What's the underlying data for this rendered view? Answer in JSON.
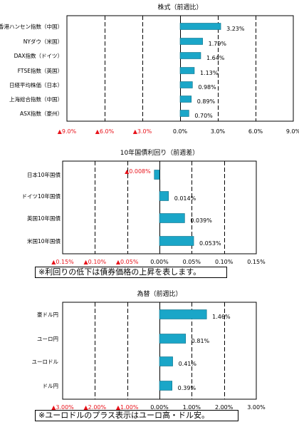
{
  "colors": {
    "bar": "#1aa6c8",
    "bar_stroke": "#0a6f86",
    "negative_text": "#e8131b",
    "text": "#000000",
    "grid": "#000000"
  },
  "chart_data": [
    {
      "type": "bar",
      "orientation": "horizontal",
      "title": "株式（前週比）",
      "categories": [
        "香港ハンセン指数（中国）",
        "NYダウ（米国）",
        "DAX指数（ドイツ）",
        "FTSE指数（英国）",
        "日経平均株価（日本）",
        "上海総合指数（中国）",
        "ASX指数（豪州）"
      ],
      "values": [
        3.23,
        1.79,
        1.64,
        1.13,
        0.98,
        0.89,
        0.7
      ],
      "value_labels": [
        "3.23%",
        "1.79%",
        "1.64%",
        "1.13%",
        "0.98%",
        "0.89%",
        "0.70%"
      ],
      "xlim": [
        -9,
        9
      ],
      "ticks": [
        -9,
        -6,
        -3,
        0,
        3,
        6,
        9
      ],
      "tick_labels": [
        "▲9.0%",
        "▲6.0%",
        "▲3.0%",
        "0.0%",
        "3.0%",
        "6.0%",
        "9.0%"
      ],
      "grid": "vertical dashed",
      "note": ""
    },
    {
      "type": "bar",
      "orientation": "horizontal",
      "title": "10年国債利回り（前週差）",
      "categories": [
        "日本10年国債",
        "ドイツ10年国債",
        "英国10年国債",
        "米国10年国債"
      ],
      "values": [
        -0.008,
        0.014,
        0.039,
        0.053
      ],
      "value_labels": [
        "▲0.008%",
        "0.014%",
        "0.039%",
        "0.053%"
      ],
      "xlim": [
        -0.15,
        0.15
      ],
      "ticks": [
        -0.15,
        -0.1,
        -0.05,
        0.0,
        0.05,
        0.1,
        0.15
      ],
      "tick_labels": [
        "▲0.15%",
        "▲0.10%",
        "▲0.05%",
        "0.00%",
        "0.05%",
        "0.10%",
        "0.15%"
      ],
      "grid": "vertical dashed",
      "note": "※利回りの低下は債券価格の上昇を表します。"
    },
    {
      "type": "bar",
      "orientation": "horizontal",
      "title": "為替（前週比）",
      "categories": [
        "豪ドル円",
        "ユーロ円",
        "ユーロドル",
        "ドル円"
      ],
      "values": [
        1.46,
        0.81,
        0.41,
        0.39
      ],
      "value_labels": [
        "1.46%",
        "0.81%",
        "0.41%",
        "0.39%"
      ],
      "xlim": [
        -3,
        3
      ],
      "ticks": [
        -3,
        -2,
        -1,
        0,
        1,
        2,
        3
      ],
      "tick_labels": [
        "▲3.00%",
        "▲2.00%",
        "▲1.00%",
        "0.00%",
        "1.00%",
        "2.00%",
        "3.00%"
      ],
      "grid": "vertical dashed",
      "note": "※ユーロドルのプラス表示はユーロ高・ドル安。"
    }
  ]
}
